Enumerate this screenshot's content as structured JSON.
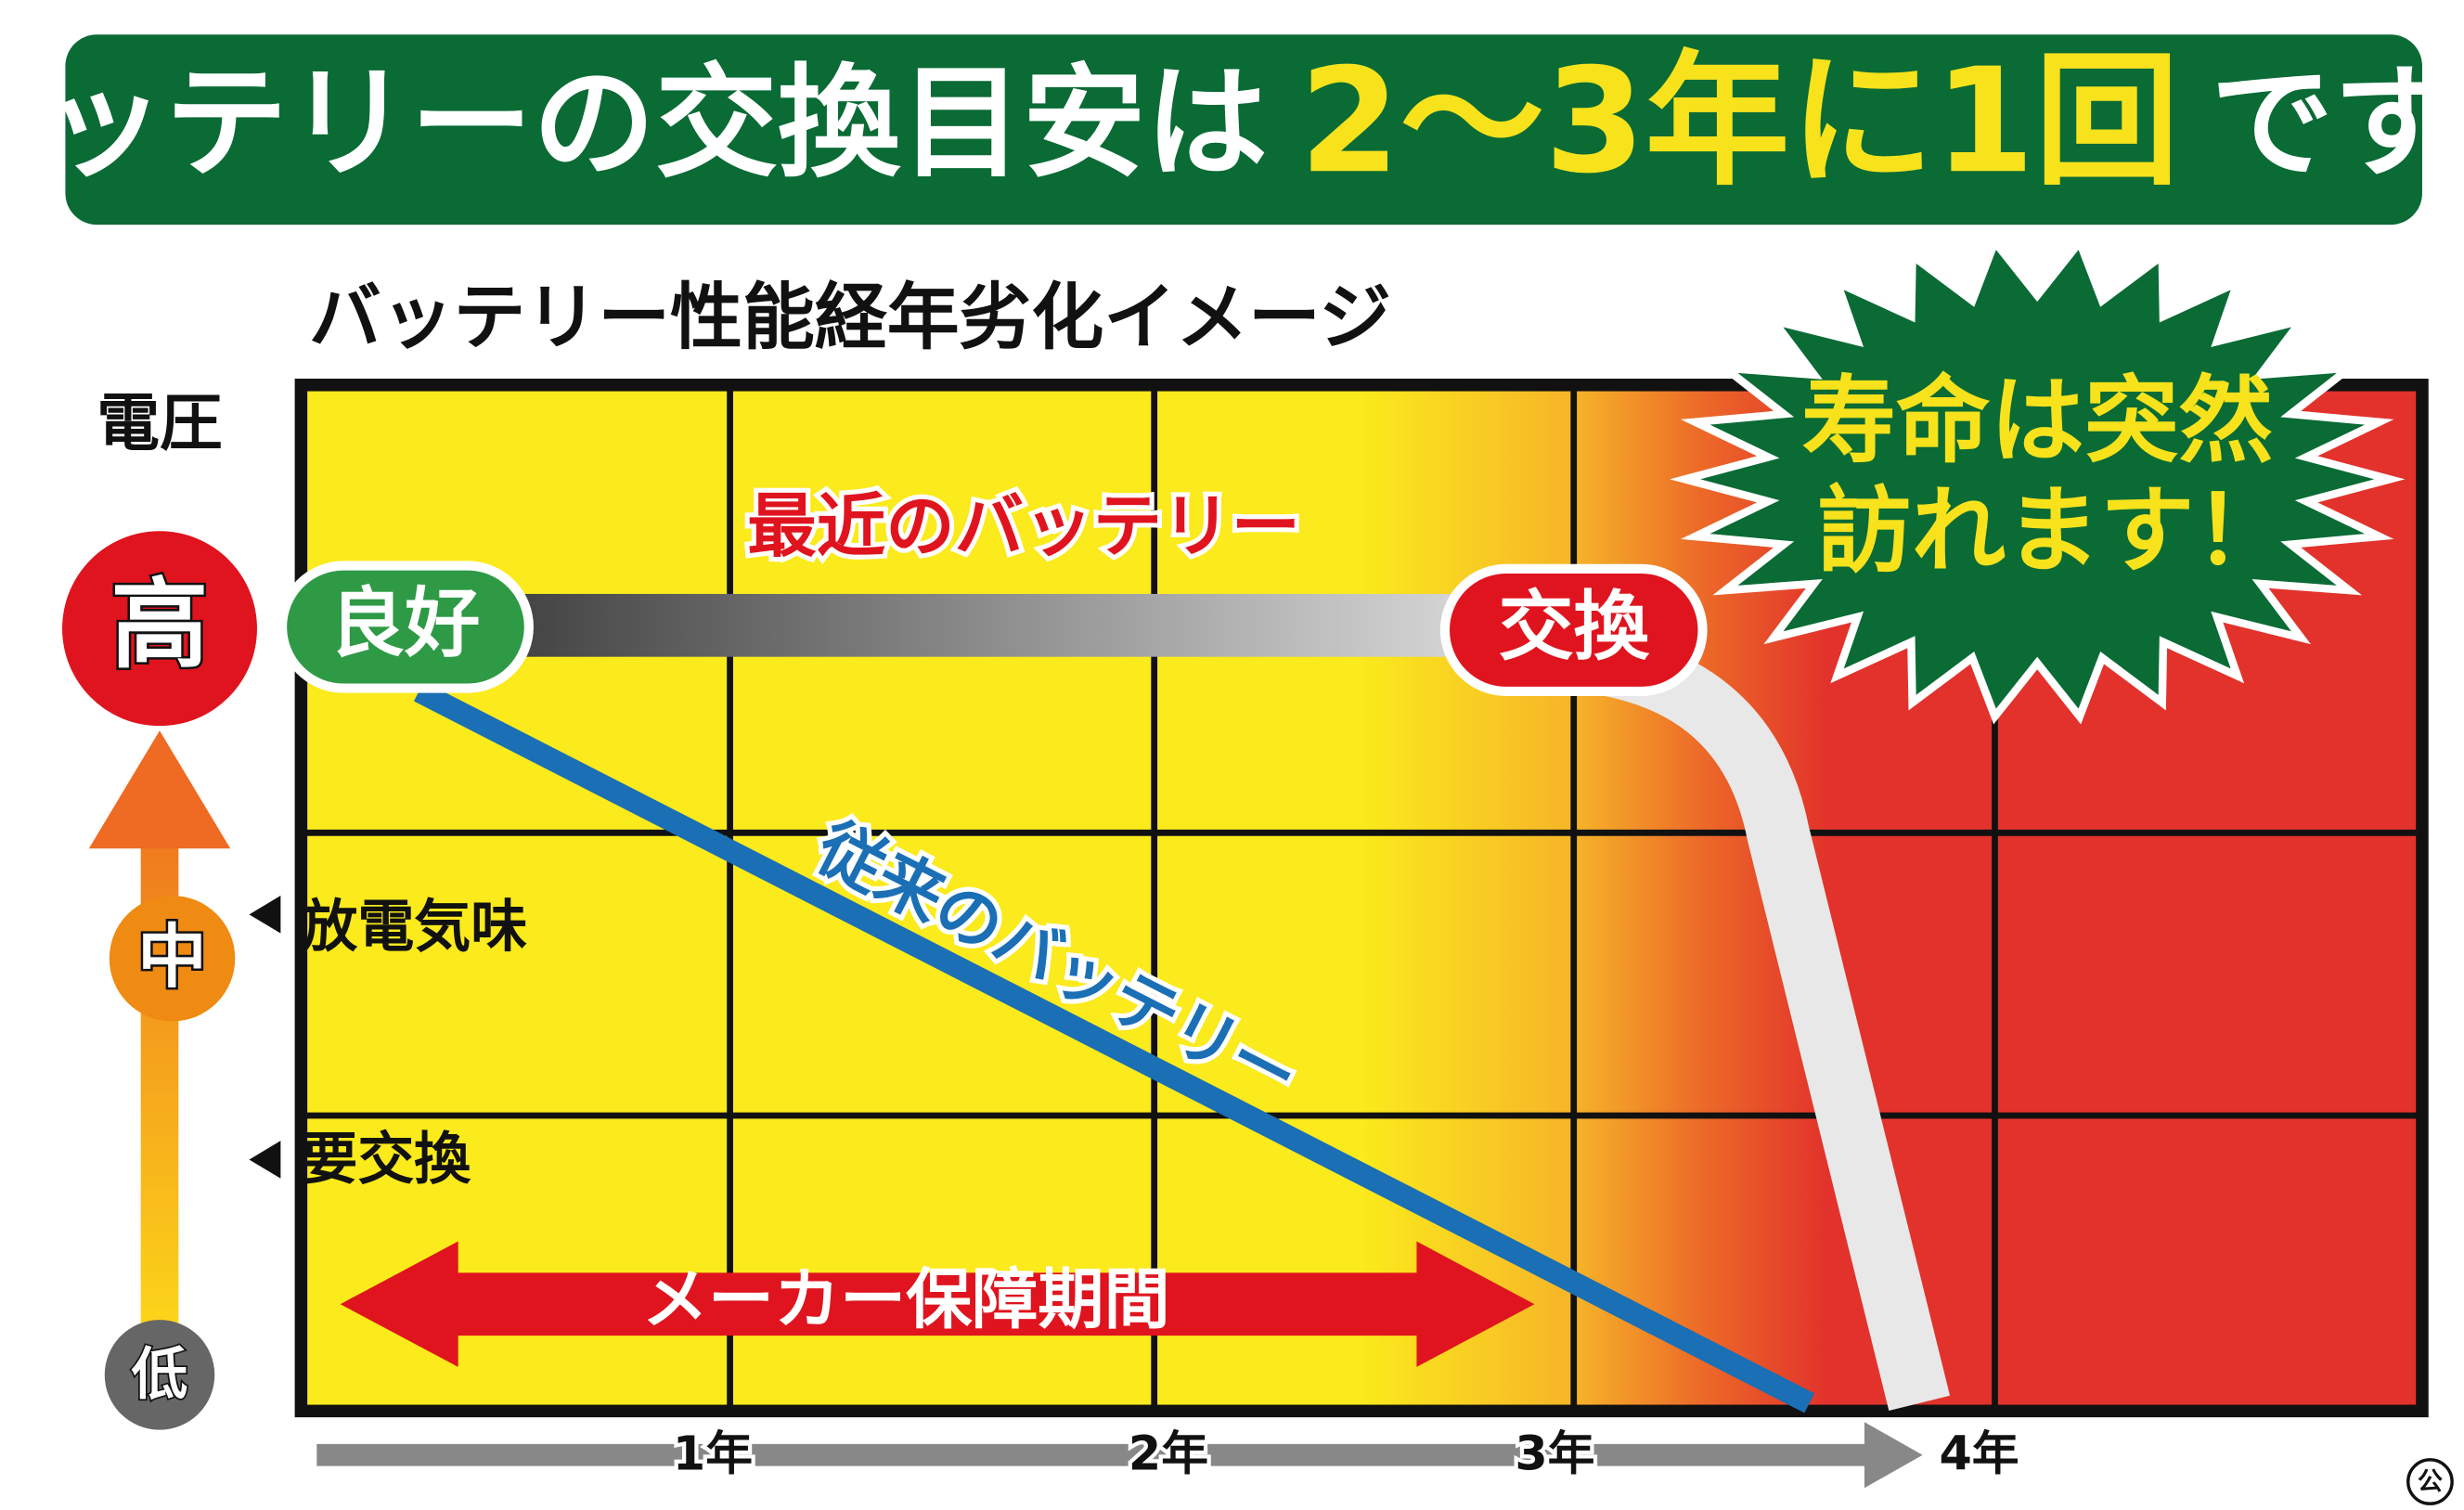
{
  "banner": {
    "title_lead": "バッテリーの交換目安は",
    "title_highlight": "2〜3年に1回",
    "title_tail": "です!!"
  },
  "diagram": {
    "title": "バッテリー性能経年劣化イメージ",
    "y_axis_label": "電圧",
    "levels": {
      "high": "高",
      "mid": "中",
      "low": "低"
    },
    "markers": {
      "discharged": "放電気味",
      "replace_needed": "要交換"
    },
    "badges": {
      "good": "良好",
      "replace": "交換"
    },
    "lines": {
      "recent": "最近のバッテリー",
      "conventional": "従来のバッテリー"
    },
    "warranty": "メーカー保障期間",
    "burst": {
      "line1": "寿命は突然",
      "line2": "訪れます！"
    },
    "x_labels": [
      "1年",
      "2年",
      "3年",
      "4年"
    ],
    "mark": "公"
  }
}
